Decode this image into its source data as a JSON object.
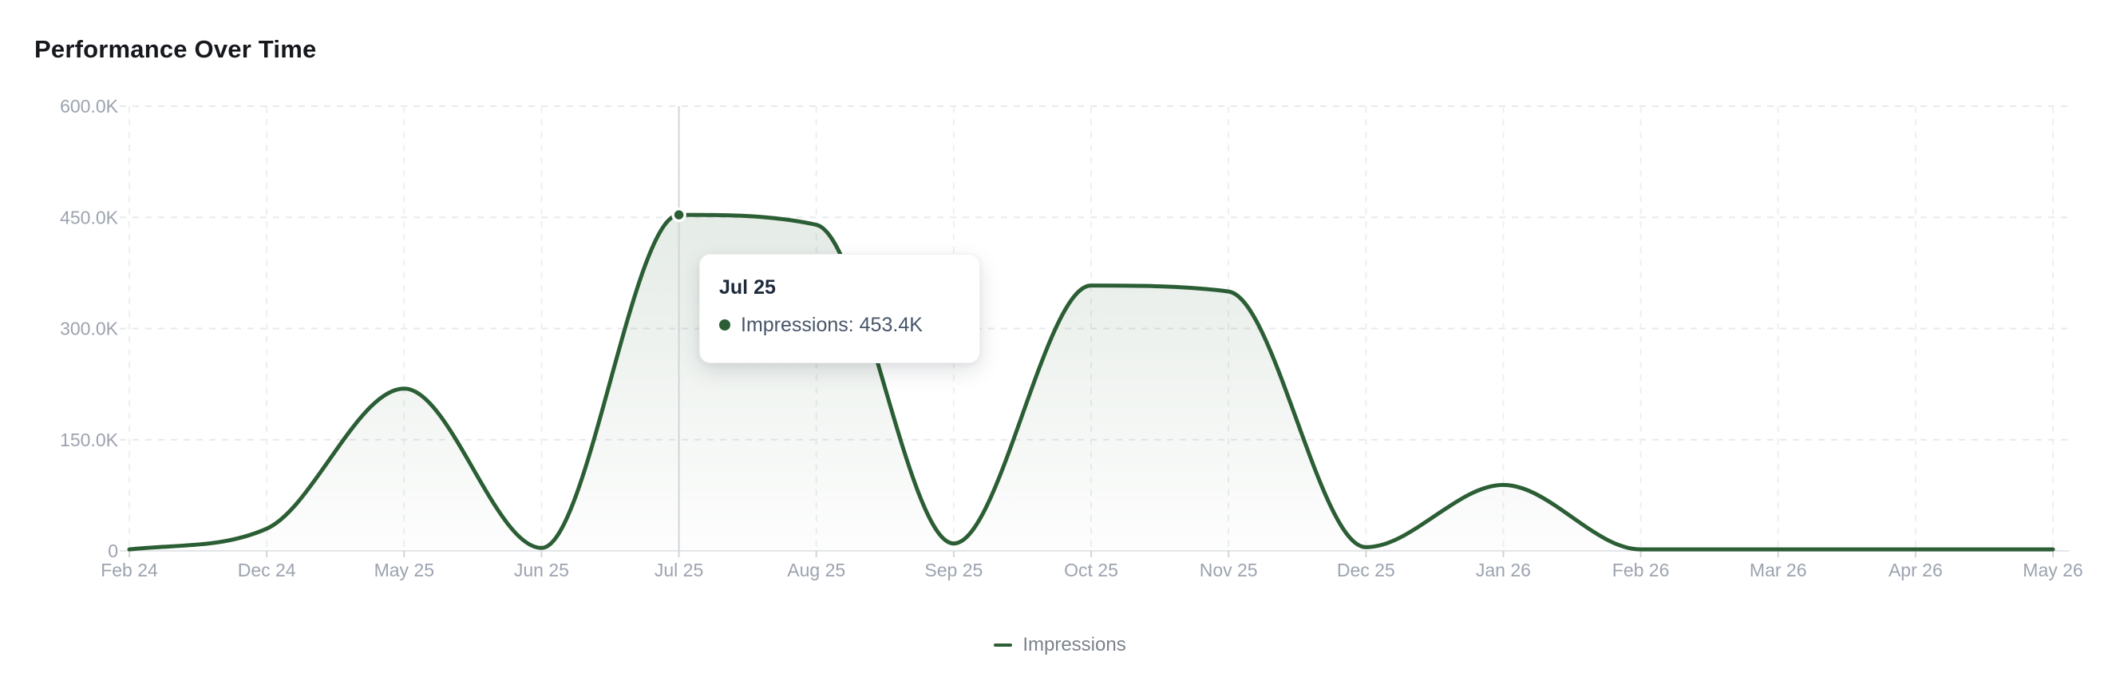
{
  "header": {
    "title": "Performance Over Time"
  },
  "colors": {
    "series_green": "#2b5e34",
    "axis_label": "#9ca3af",
    "grid_h": "#e7e9ec",
    "grid_v": "#edeff2",
    "baseline": "#e4e6e9",
    "crosshair": "#d2d5d9",
    "tooltip_title": "#1e293b",
    "tooltip_value": "#475569"
  },
  "tooltip": {
    "title": "Jul 25",
    "series": "Impressions",
    "value": "453.4K",
    "text": "Impressions: 453.4K"
  },
  "legend": {
    "items": [
      {
        "label": "Impressions",
        "color": "#2b5e34"
      }
    ]
  },
  "chart_data": {
    "type": "area",
    "title": "Performance Over Time",
    "categories": [
      "Feb 24",
      "Dec 24",
      "May 25",
      "Jun 25",
      "Jul 25",
      "Aug 25",
      "Sep 25",
      "Oct 25",
      "Nov 25",
      "Dec 25",
      "Jan 26",
      "Feb 26",
      "Mar 26",
      "Apr 26",
      "May 26"
    ],
    "series": [
      {
        "name": "Impressions",
        "color": "#2b5e34",
        "values": [
          2000,
          30000,
          219000,
          4000,
          453400,
          440000,
          10000,
          358000,
          350000,
          5000,
          89000,
          2000,
          2000,
          2000,
          2000
        ]
      }
    ],
    "ylim": [
      0,
      600000
    ],
    "yticks": [
      {
        "value": 0,
        "label": "0"
      },
      {
        "value": 150000,
        "label": "150.0K"
      },
      {
        "value": 300000,
        "label": "300.0K"
      },
      {
        "value": 450000,
        "label": "450.0K"
      },
      {
        "value": 600000,
        "label": "600.0K"
      }
    ],
    "grid": "dashed",
    "legend_position": "bottom",
    "smoothing": "monotone",
    "highlight": {
      "index": 4,
      "category": "Jul 25",
      "value": 453400,
      "value_label": "453.4K"
    }
  }
}
